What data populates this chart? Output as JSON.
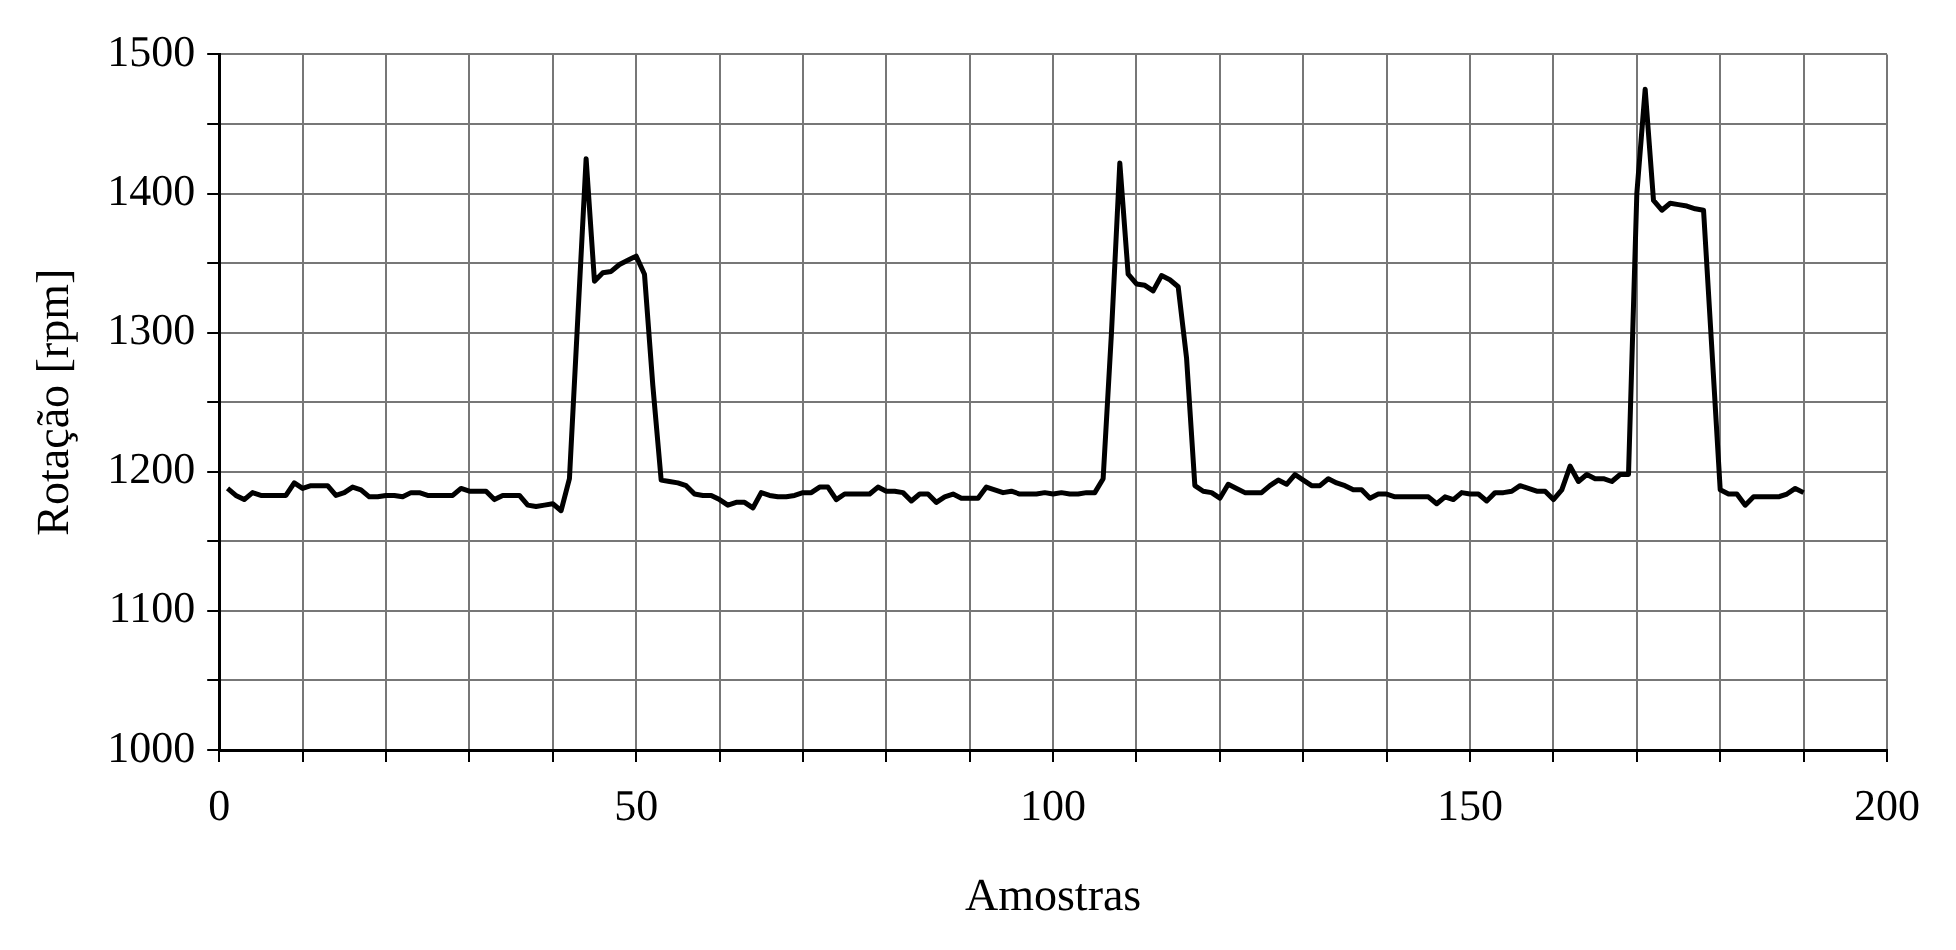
{
  "chart_data": {
    "type": "line",
    "xlabel": "Amostras",
    "ylabel": "Rotação [rpm]",
    "x": [
      1,
      2,
      3,
      4,
      5,
      6,
      7,
      8,
      9,
      10,
      11,
      12,
      13,
      14,
      15,
      16,
      17,
      18,
      19,
      20,
      21,
      22,
      23,
      24,
      25,
      26,
      27,
      28,
      29,
      30,
      31,
      32,
      33,
      34,
      35,
      36,
      37,
      38,
      39,
      40,
      41,
      42,
      43,
      44,
      45,
      46,
      47,
      48,
      49,
      50,
      51,
      52,
      53,
      54,
      55,
      56,
      57,
      58,
      59,
      60,
      61,
      62,
      63,
      64,
      65,
      66,
      67,
      68,
      69,
      70,
      71,
      72,
      73,
      74,
      75,
      76,
      77,
      78,
      79,
      80,
      81,
      82,
      83,
      84,
      85,
      86,
      87,
      88,
      89,
      90,
      91,
      92,
      93,
      94,
      95,
      96,
      97,
      98,
      99,
      100,
      101,
      102,
      103,
      104,
      105,
      106,
      107,
      108,
      109,
      110,
      111,
      112,
      113,
      114,
      115,
      116,
      117,
      118,
      119,
      120,
      121,
      122,
      123,
      124,
      125,
      126,
      127,
      128,
      129,
      130,
      131,
      132,
      133,
      134,
      135,
      136,
      137,
      138,
      139,
      140,
      141,
      142,
      143,
      144,
      145,
      146,
      147,
      148,
      149,
      150,
      151,
      152,
      153,
      154,
      155,
      156,
      157,
      158,
      159,
      160,
      161,
      162,
      163,
      164,
      165,
      166,
      167,
      168,
      169,
      170,
      171,
      172,
      173,
      174,
      175,
      176,
      177,
      178,
      179,
      180,
      181,
      182,
      183,
      184,
      185,
      186,
      187,
      188,
      189,
      190
    ],
    "series": [
      {
        "color": "#000000",
        "values": [
          1188,
          1183,
          1180,
          1185,
          1183,
          1183,
          1183,
          1183,
          1192,
          1188,
          1190,
          1190,
          1190,
          1183,
          1185,
          1189,
          1187,
          1182,
          1182,
          1183,
          1183,
          1182,
          1185,
          1185,
          1183,
          1183,
          1183,
          1183,
          1188,
          1186,
          1186,
          1186,
          1180,
          1183,
          1183,
          1183,
          1176,
          1175,
          1176,
          1177,
          1172,
          1195,
          1310,
          1425,
          1337,
          1343,
          1344,
          1349,
          1352,
          1355,
          1342,
          1262,
          1194,
          1193,
          1192,
          1190,
          1184,
          1183,
          1183,
          1180,
          1176,
          1178,
          1178,
          1174,
          1185,
          1183,
          1182,
          1182,
          1183,
          1185,
          1185,
          1189,
          1189,
          1180,
          1184,
          1184,
          1184,
          1184,
          1189,
          1186,
          1186,
          1185,
          1179,
          1184,
          1184,
          1178,
          1182,
          1184,
          1181,
          1181,
          1181,
          1189,
          1187,
          1185,
          1186,
          1184,
          1184,
          1184,
          1185,
          1184,
          1185,
          1184,
          1184,
          1185,
          1185,
          1195,
          1300,
          1422,
          1342,
          1335,
          1334,
          1330,
          1341,
          1338,
          1333,
          1282,
          1190,
          1186,
          1185,
          1181,
          1191,
          1188,
          1185,
          1185,
          1185,
          1190,
          1194,
          1191,
          1198,
          1194,
          1190,
          1190,
          1195,
          1192,
          1190,
          1187,
          1187,
          1181,
          1184,
          1184,
          1182,
          1182,
          1182,
          1182,
          1182,
          1177,
          1182,
          1180,
          1185,
          1184,
          1184,
          1179,
          1185,
          1185,
          1186,
          1190,
          1188,
          1186,
          1186,
          1180,
          1187,
          1204,
          1193,
          1198,
          1195,
          1195,
          1193,
          1198,
          1198,
          1400,
          1475,
          1395,
          1388,
          1393,
          1392,
          1391,
          1389,
          1388,
          1288,
          1187,
          1184,
          1184,
          1176,
          1182,
          1182,
          1182,
          1182,
          1184,
          1188,
          1185
        ]
      }
    ],
    "xlim": [
      0,
      200
    ],
    "xticks": [
      0,
      {
        "value": 10,
        "label": null
      },
      {
        "value": 20,
        "label": null
      },
      {
        "value": 30,
        "label": null
      },
      {
        "value": 40,
        "label": null
      },
      50,
      {
        "value": 60,
        "label": null
      },
      {
        "value": 70,
        "label": null
      },
      {
        "value": 80,
        "label": null
      },
      {
        "value": 90,
        "label": null
      },
      100,
      {
        "value": 110,
        "label": null
      },
      {
        "value": 120,
        "label": null
      },
      {
        "value": 130,
        "label": null
      },
      {
        "value": 140,
        "label": null
      },
      150,
      {
        "value": 160,
        "label": null
      },
      {
        "value": 170,
        "label": null
      },
      {
        "value": 180,
        "label": null
      },
      {
        "value": 190,
        "label": null
      },
      200
    ],
    "ylim": [
      1000,
      1500
    ],
    "yticks": [
      1000,
      {
        "value": 1050,
        "label": null
      },
      1100,
      {
        "value": 1150,
        "label": null
      },
      1200,
      {
        "value": 1250,
        "label": null
      },
      1300,
      {
        "value": 1350,
        "label": null
      },
      1400,
      {
        "value": 1450,
        "label": null
      },
      1500
    ],
    "grid": true,
    "marker": "none",
    "line_style": "solid"
  }
}
